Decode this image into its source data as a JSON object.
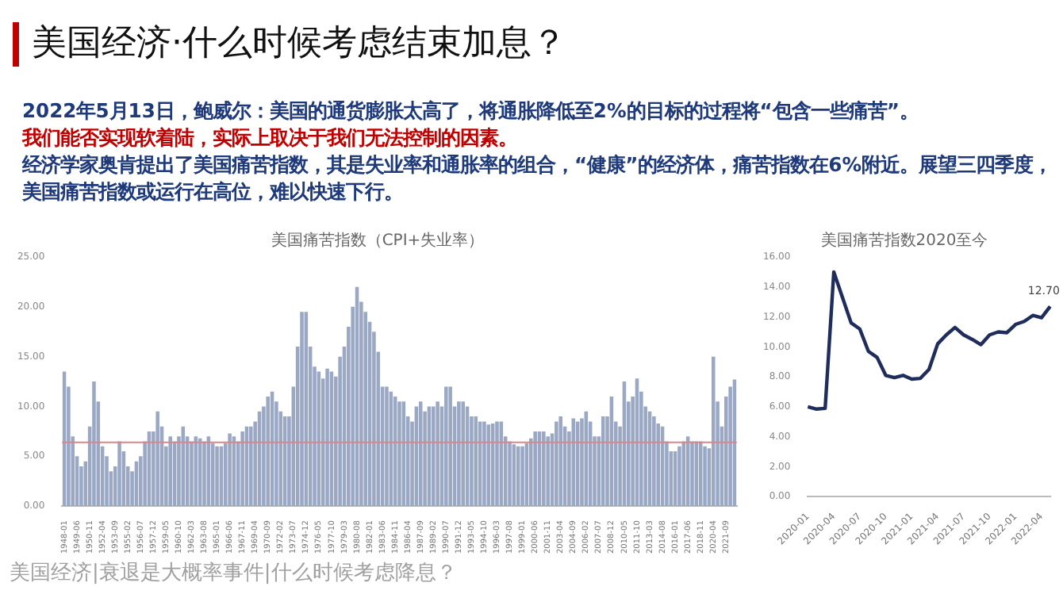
{
  "chart_data": [
    {
      "type": "other",
      "title": "美国经济·什么时候考虑结束加息？",
      "annotations": [
        "2022年5月13日，鲍威尔：美国的通货膨胀太高了，将通胀降低至2%的目标的过程将“包含一些痛苦”。",
        "我们能否实现软着陆，实际上取决于我们无法控制的因素。",
        "经济学家奥肯提出了美国痛苦指数，其是失业率和通胀率的组合，“健康”的经济体，痛苦指数在6%附近。展望三四季度，美国痛苦指数或运行在高位，难以快速下行。",
        "美国经济|衰退是大概率事件|什么时候考虑降息？"
      ]
    },
    {
      "type": "bar",
      "title": "美国痛苦指数（CPI+失业率）",
      "color": "#9aa8c4",
      "categories": [
        "1948-01",
        null,
        null,
        "1949-06",
        null,
        null,
        "1950-11",
        null,
        null,
        "1952-04",
        null,
        null,
        "1953-09",
        null,
        null,
        "1955-02",
        null,
        null,
        "1956-07",
        null,
        null,
        "1957-12",
        null,
        null,
        "1959-05",
        null,
        null,
        "1960-10",
        null,
        null,
        "1962-03",
        null,
        null,
        "1963-08",
        null,
        null,
        "1965-01",
        null,
        null,
        "1966-06",
        null,
        null,
        "1967-11",
        null,
        null,
        "1969-04",
        null,
        null,
        "1970-09",
        null,
        null,
        "1972-02",
        null,
        null,
        "1973-07",
        null,
        null,
        "1974-12",
        null,
        null,
        "1976-05",
        null,
        null,
        "1977-10",
        null,
        null,
        "1979-03",
        null,
        null,
        "1980-08",
        null,
        null,
        "1982-01",
        null,
        null,
        "1983-06",
        null,
        null,
        "1984-11",
        null,
        null,
        "1986-04",
        null,
        null,
        "1987-09",
        null,
        null,
        "1989-02",
        null,
        null,
        "1990-07",
        null,
        null,
        "1991-12",
        null,
        null,
        "1993-05",
        null,
        null,
        "1994-10",
        null,
        null,
        "1996-03",
        null,
        null,
        "1997-08",
        null,
        null,
        "1999-01",
        null,
        null,
        "2000-06",
        null,
        null,
        "2001-11",
        null,
        null,
        "2003-04",
        null,
        null,
        "2004-09",
        null,
        null,
        "2006-02",
        null,
        null,
        "2007-07",
        null,
        null,
        "2008-12",
        null,
        null,
        "2010-05",
        null,
        null,
        "2011-10",
        null,
        null,
        "2013-03",
        null,
        null,
        "2014-08",
        null,
        null,
        "2016-01",
        null,
        null,
        "2017-06",
        null,
        null,
        "2018-11",
        null,
        null,
        "2020-04",
        null,
        null,
        "2021-09",
        null,
        null
      ],
      "values": [
        13.5,
        12,
        7,
        5,
        4,
        4.5,
        8,
        12.5,
        10.5,
        6,
        5,
        3.5,
        4,
        6.5,
        5.5,
        4,
        3.5,
        4.5,
        5,
        6.5,
        7.5,
        7.5,
        9.5,
        8,
        6,
        7,
        6.5,
        7,
        8,
        7,
        6.5,
        7,
        6.8,
        6.5,
        7,
        6.3,
        6,
        6,
        6.3,
        7.3,
        7,
        6.5,
        7.5,
        8,
        8,
        8.5,
        9.5,
        10,
        11,
        11.5,
        10.5,
        9.5,
        9,
        9,
        12,
        16,
        19.5,
        19.5,
        16,
        14,
        13.5,
        12.8,
        13.8,
        13.5,
        13,
        15,
        16,
        18,
        20,
        22,
        20.5,
        19.5,
        18.5,
        17.5,
        15.5,
        12,
        12,
        11.5,
        11,
        10.5,
        10.5,
        9,
        8.5,
        10,
        10.5,
        9.5,
        10,
        10,
        10.5,
        10,
        12,
        12,
        10,
        10.5,
        10.5,
        10,
        9,
        9,
        8.5,
        8.5,
        8.2,
        8.3,
        8.5,
        8.5,
        7,
        6.5,
        6.2,
        6,
        6,
        6.3,
        6.8,
        7.5,
        7.5,
        7.5,
        7,
        7.3,
        8.5,
        9,
        8,
        7.5,
        8.8,
        8.5,
        8.8,
        9.5,
        8.5,
        7,
        7,
        9,
        9,
        11,
        8.5,
        8,
        12.5,
        10.5,
        11,
        12.8,
        11.5,
        10,
        9.5,
        9,
        8.3,
        8,
        6.5,
        5.5,
        5.5,
        6,
        6.5,
        7,
        6.5,
        6.5,
        6.5,
        6,
        5.8,
        15,
        10.5,
        8,
        11,
        12,
        12.7
      ],
      "ylim": [
        0,
        25
      ],
      "yticks": [
        {
          "value": 0,
          "label": "0.00"
        },
        {
          "value": 5,
          "label": "5.00"
        },
        {
          "value": 10,
          "label": "10.00"
        },
        {
          "value": 15,
          "label": "15.00"
        },
        {
          "value": 20,
          "label": "20.00"
        },
        {
          "value": 25,
          "label": "25.00"
        }
      ],
      "ref_lines": [
        {
          "axis": "y",
          "value": 6.4,
          "color": "#d9868a"
        }
      ]
    },
    {
      "type": "line",
      "title": "美国痛苦指数2020至今",
      "color": "#1f2d5c",
      "marker": "none",
      "categories": [
        "2020-01",
        null,
        null,
        "2020-04",
        null,
        null,
        "2020-07",
        null,
        null,
        "2020-10",
        null,
        null,
        "2021-01",
        null,
        null,
        "2021-04",
        null,
        null,
        "2021-07",
        null,
        null,
        "2021-10",
        null,
        null,
        "2022-01",
        null,
        null,
        "2022-04",
        null
      ],
      "values": [
        6.0,
        5.85,
        5.9,
        15.0,
        13.3,
        11.6,
        11.2,
        9.7,
        9.3,
        8.1,
        7.95,
        8.1,
        7.85,
        7.9,
        8.5,
        10.2,
        10.8,
        11.3,
        10.8,
        10.5,
        10.15,
        10.8,
        11.0,
        10.95,
        11.5,
        11.7,
        12.1,
        11.95,
        12.7
      ],
      "value_labels": [
        null,
        null,
        null,
        null,
        null,
        null,
        null,
        null,
        null,
        null,
        null,
        null,
        null,
        null,
        null,
        null,
        null,
        null,
        null,
        null,
        null,
        null,
        null,
        null,
        null,
        null,
        null,
        null,
        "12.70"
      ],
      "ylim": [
        0,
        16
      ],
      "yticks": [
        {
          "value": 0,
          "label": "0.00"
        },
        {
          "value": 2,
          "label": "2.00"
        },
        {
          "value": 4,
          "label": "4.00"
        },
        {
          "value": 6,
          "label": "6.00"
        },
        {
          "value": 8,
          "label": "8.00"
        },
        {
          "value": 10,
          "label": "10.00"
        },
        {
          "value": 12,
          "label": "12.00"
        },
        {
          "value": 14,
          "label": "14.00"
        },
        {
          "value": 16,
          "label": "16.00"
        }
      ]
    }
  ]
}
